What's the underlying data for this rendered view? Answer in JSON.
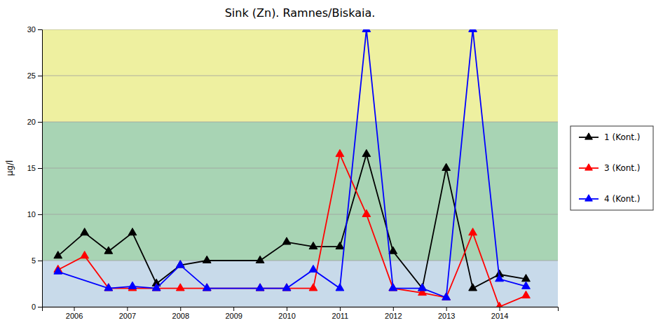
{
  "chart_data": {
    "type": "line",
    "title": "Sink (Zn). Ramnes/Biskaia.",
    "y_label": "μg/l",
    "xlim": [
      2005.4,
      2015.1
    ],
    "xticks": [
      2006,
      2007,
      2008,
      2009,
      2010,
      2011,
      2012,
      2013,
      2014
    ],
    "ylim": [
      0,
      30
    ],
    "yticks": [
      0,
      5,
      10,
      15,
      20,
      25,
      30
    ],
    "grid": true,
    "legend": "right",
    "marker": "triangle",
    "bands": [
      {
        "from": 0,
        "to": 5,
        "color": "#c8daea"
      },
      {
        "from": 5,
        "to": 20,
        "color": "#a8d4b4"
      },
      {
        "from": 20,
        "to": 30,
        "color": "#eef0a0"
      }
    ],
    "series": [
      {
        "name": "1 (Kont.)",
        "color": "black",
        "x": [
          2005.7,
          2006.2,
          2006.65,
          2007.1,
          2007.55,
          2008.0,
          2008.5,
          2009.5,
          2010.0,
          2010.5,
          2011.0,
          2011.5,
          2012.0,
          2012.55,
          2013.0,
          2013.5,
          2014.0,
          2014.5
        ],
        "values": [
          5.5,
          8.0,
          6.0,
          8.0,
          2.5,
          4.5,
          5.0,
          5.0,
          7.0,
          6.5,
          6.5,
          16.5,
          6.0,
          2.0,
          15.0,
          2.0,
          3.5,
          3.0
        ]
      },
      {
        "name": "3 (Kont.)",
        "color": "red",
        "x": [
          2005.7,
          2006.2,
          2006.65,
          2007.1,
          2007.55,
          2008.0,
          2008.5,
          2009.5,
          2010.0,
          2010.5,
          2011.0,
          2011.5,
          2012.0,
          2012.55,
          2013.0,
          2013.5,
          2014.0,
          2014.5
        ],
        "values": [
          4.0,
          5.5,
          2.0,
          2.0,
          2.0,
          2.0,
          2.0,
          2.0,
          2.0,
          2.0,
          16.5,
          10.0,
          2.0,
          1.5,
          1.0,
          8.0,
          0.0,
          1.2
        ]
      },
      {
        "name": "4 (Kont.)",
        "color": "blue",
        "x": [
          2005.7,
          2006.65,
          2007.1,
          2007.55,
          2008.0,
          2008.5,
          2009.5,
          2010.0,
          2010.5,
          2011.0,
          2011.5,
          2012.0,
          2012.55,
          2013.0,
          2013.5,
          2014.0,
          2014.5
        ],
        "values": [
          3.8,
          2.0,
          2.2,
          2.0,
          4.5,
          2.0,
          2.0,
          2.0,
          4.0,
          2.0,
          30.0,
          2.0,
          2.0,
          1.0,
          30.0,
          3.0,
          2.2
        ]
      }
    ]
  }
}
